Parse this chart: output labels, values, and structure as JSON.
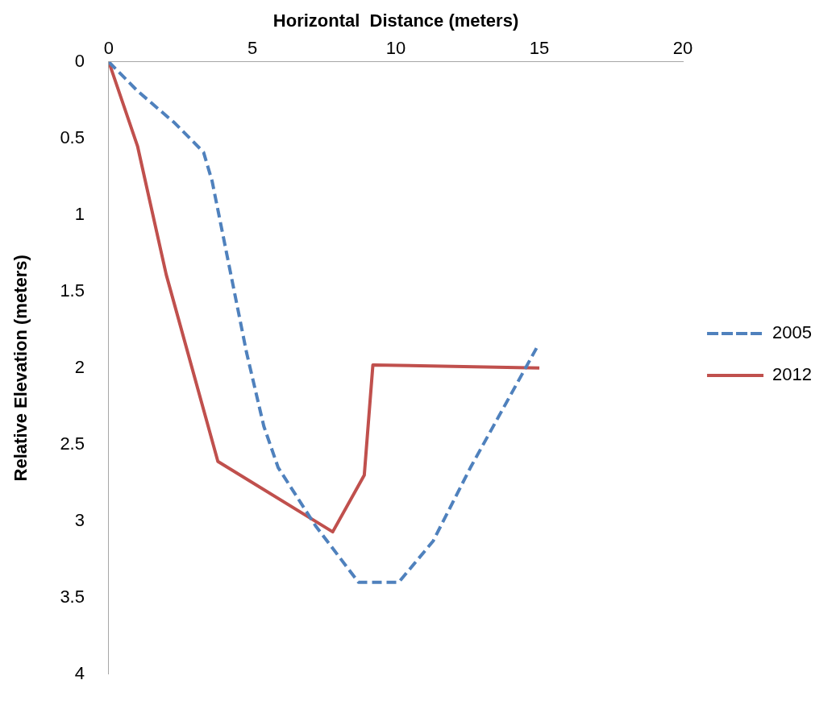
{
  "chart_data": {
    "type": "line",
    "xlabel": "Horizontal  Distance (meters)",
    "ylabel": "Relative Elevation (meters)",
    "xlim": [
      0,
      20
    ],
    "xticks": [
      0,
      5,
      10,
      15,
      20
    ],
    "ylim": [
      4,
      0
    ],
    "yticks": [
      0,
      0.5,
      1,
      1.5,
      2,
      2.5,
      3,
      3.5,
      4
    ],
    "grid": false,
    "legend": "right",
    "marker": "none",
    "series": [
      {
        "name": "2005",
        "color": "#4f81bd",
        "line_style": "dashed",
        "x": [
          0,
          1.0,
          2.3,
          3.3,
          3.6,
          4.8,
          5.4,
          5.9,
          7.2,
          8.7,
          10.1,
          11.3,
          12.6,
          14.9
        ],
        "values": [
          0,
          0.19,
          0.4,
          0.59,
          0.78,
          1.9,
          2.38,
          2.65,
          3.03,
          3.4,
          3.4,
          3.13,
          2.65,
          1.87
        ]
      },
      {
        "name": "2012",
        "color": "#c0504d",
        "line_style": "solid",
        "x": [
          0,
          1.0,
          2.0,
          3.8,
          7.8,
          8.9,
          9.2,
          15.0
        ],
        "values": [
          0,
          0.55,
          1.39,
          2.61,
          3.07,
          2.7,
          1.98,
          2.0
        ]
      }
    ]
  }
}
